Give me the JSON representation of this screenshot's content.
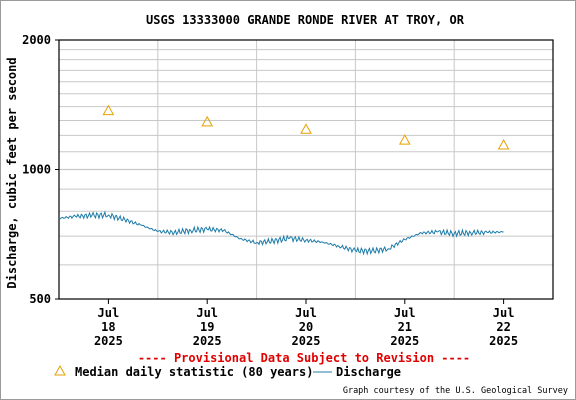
{
  "chart_data": {
    "type": "line",
    "title": "USGS 13333000 GRANDE RONDE RIVER AT TROY, OR",
    "ylabel": "Discharge, cubic feet per second",
    "y_scale": "log",
    "ylim": [
      500,
      2000
    ],
    "y_ticks": [
      "500",
      "1000",
      "2000"
    ],
    "x_ticks": [
      {
        "month": "Jul",
        "day": "18",
        "year": "2025"
      },
      {
        "month": "Jul",
        "day": "19",
        "year": "2025"
      },
      {
        "month": "Jul",
        "day": "20",
        "year": "2025"
      },
      {
        "month": "Jul",
        "day": "21",
        "year": "2025"
      },
      {
        "month": "Jul",
        "day": "22",
        "year": "2025"
      }
    ],
    "xlim": [
      "2025-07-17T12:00",
      "2025-07-22T12:00"
    ],
    "median_daily": {
      "name": "Median daily statistic (80 years)",
      "color": "#e8a000",
      "x": [
        "2025-07-18T00:00",
        "2025-07-19T00:00",
        "2025-07-20T00:00",
        "2025-07-21T00:00",
        "2025-07-22T00:00"
      ],
      "y": [
        1370,
        1290,
        1240,
        1170,
        1140
      ]
    },
    "discharge": {
      "name": "Discharge",
      "color": "#1c7ba8",
      "x": [
        "2025-07-17T12:00",
        "2025-07-17T16:00",
        "2025-07-17T20:00",
        "2025-07-18T00:00",
        "2025-07-18T04:00",
        "2025-07-18T08:00",
        "2025-07-18T12:00",
        "2025-07-18T16:00",
        "2025-07-18T20:00",
        "2025-07-19T00:00",
        "2025-07-19T04:00",
        "2025-07-19T08:00",
        "2025-07-19T12:00",
        "2025-07-19T16:00",
        "2025-07-19T20:00",
        "2025-07-20T00:00",
        "2025-07-20T04:00",
        "2025-07-20T08:00",
        "2025-07-20T12:00",
        "2025-07-20T16:00",
        "2025-07-20T20:00",
        "2025-07-21T00:00",
        "2025-07-21T04:00",
        "2025-07-21T08:00",
        "2025-07-21T12:00",
        "2025-07-21T16:00",
        "2025-07-21T20:00",
        "2025-07-22T00:00"
      ],
      "y": [
        770,
        778,
        782,
        784,
        764,
        742,
        718,
        714,
        722,
        726,
        722,
        690,
        676,
        682,
        692,
        685,
        678,
        663,
        648,
        646,
        654,
        688,
        712,
        716,
        710,
        713,
        714,
        716
      ]
    },
    "legend": [
      "Median daily statistic (80 years)",
      "Discharge"
    ],
    "annotation": "---- Provisional Data Subject to Revision ----",
    "credit": "Graph courtesy of the U.S. Geological Survey",
    "grid": true
  }
}
